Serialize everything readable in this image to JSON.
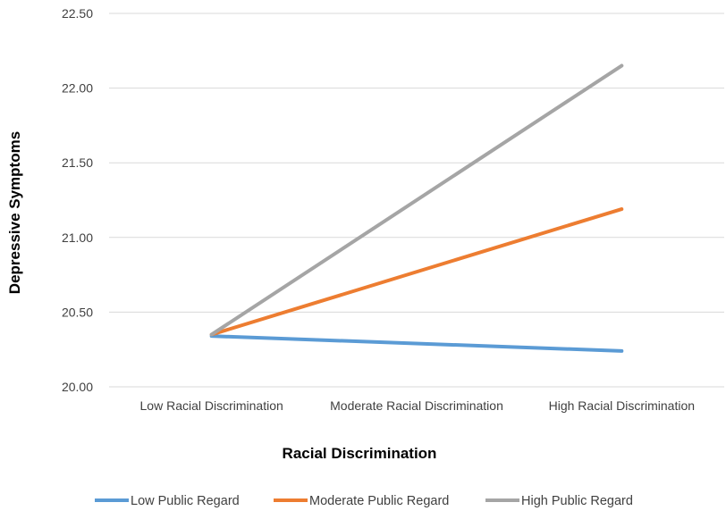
{
  "chart_data": {
    "type": "line",
    "title": "",
    "xlabel": "Racial Discrimination",
    "ylabel": "Depressive Symptoms",
    "categories": [
      "Low Racial Discrimination",
      "Moderate Racial Discrimination",
      "High Racial Discrimination"
    ],
    "ylim": [
      20.0,
      22.5
    ],
    "yticks": [
      "20.00",
      "20.50",
      "21.00",
      "21.50",
      "22.00",
      "22.50"
    ],
    "grid": true,
    "legend_position": "bottom",
    "series": [
      {
        "name": "Low Public Regard",
        "color": "#5B9BD5",
        "values": [
          20.34,
          null,
          20.24
        ]
      },
      {
        "name": "Moderate Public Regard",
        "color": "#ED7D31",
        "values": [
          20.35,
          null,
          21.19
        ]
      },
      {
        "name": "High Public Regard",
        "color": "#A5A5A5",
        "values": [
          20.35,
          null,
          22.15
        ]
      }
    ]
  }
}
